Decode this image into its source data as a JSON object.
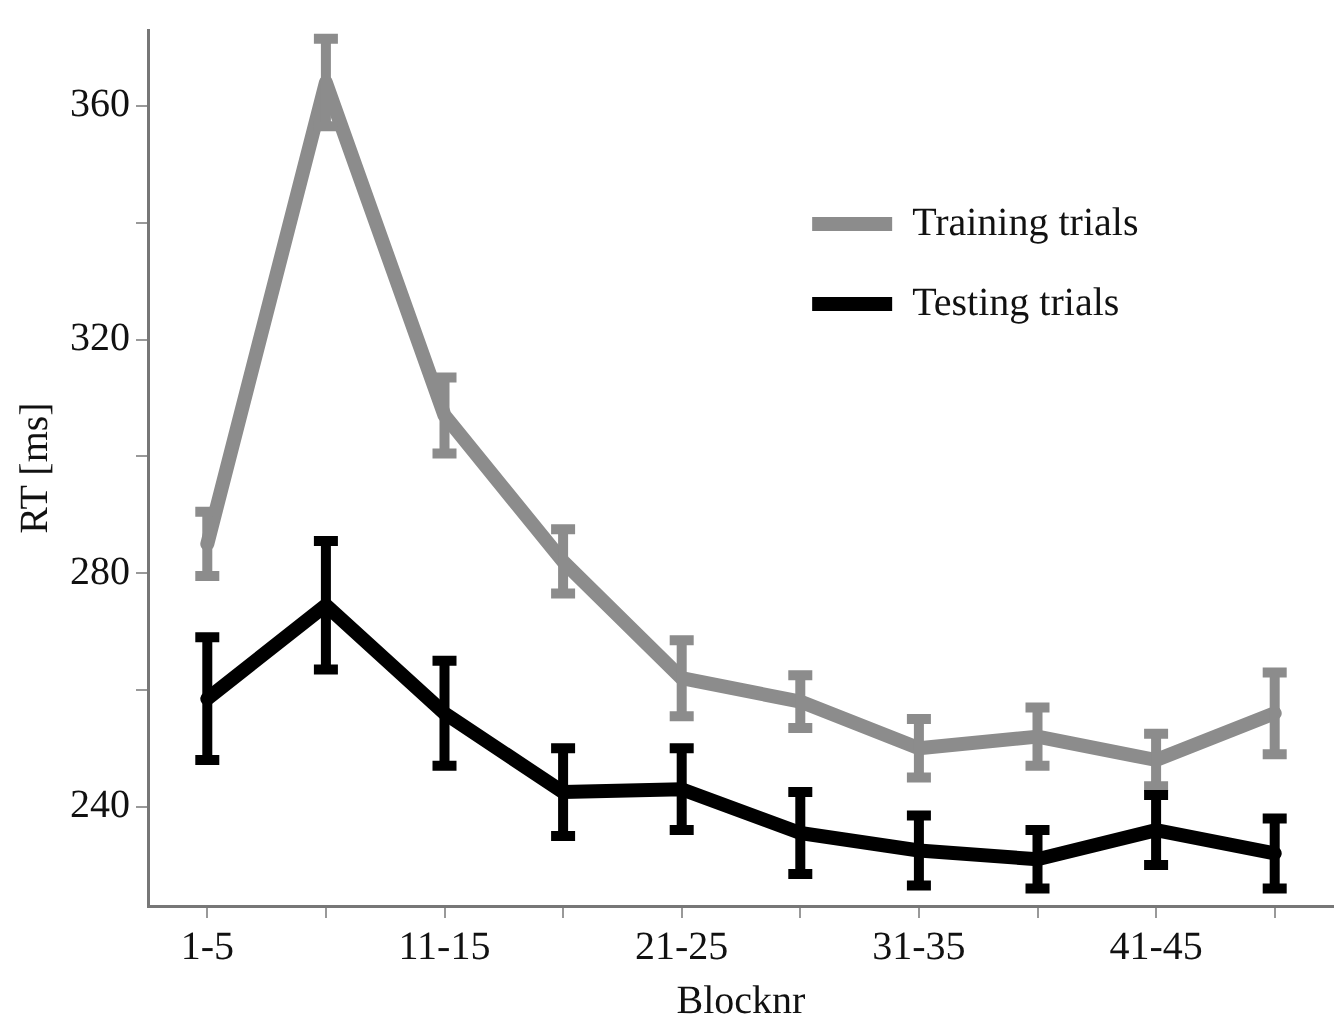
{
  "chart_data": {
    "type": "line",
    "xlabel": "Blocknr",
    "ylabel": "RT [ms]",
    "categories": [
      "1-5",
      null,
      "11-15",
      null,
      "21-25",
      null,
      "31-35",
      null,
      "41-45",
      null
    ],
    "series": [
      {
        "name": "Training trials",
        "color": "#8c8c8c",
        "values": [
          285,
          364,
          307,
          282,
          262,
          258,
          250,
          252,
          248,
          256
        ],
        "errors": [
          5.5,
          7.5,
          6.5,
          5.5,
          6.5,
          4.5,
          5,
          5,
          4.5,
          7
        ]
      },
      {
        "name": "Testing trials",
        "color": "#000000",
        "values": [
          258.5,
          274.5,
          256,
          242.5,
          243,
          235.5,
          232.5,
          231,
          236,
          232
        ],
        "errors": [
          10.5,
          11,
          9,
          7.5,
          7,
          7,
          6,
          5,
          6,
          6
        ]
      }
    ],
    "ylim": [
      223,
      373
    ],
    "yticks": [
      240,
      {
        "value": 260,
        "label": null
      },
      280,
      {
        "value": 300,
        "label": null
      },
      320,
      {
        "value": 340,
        "label": null
      },
      360
    ],
    "grid": false,
    "legend": "top right",
    "marker": "none",
    "line_style": "solid"
  }
}
